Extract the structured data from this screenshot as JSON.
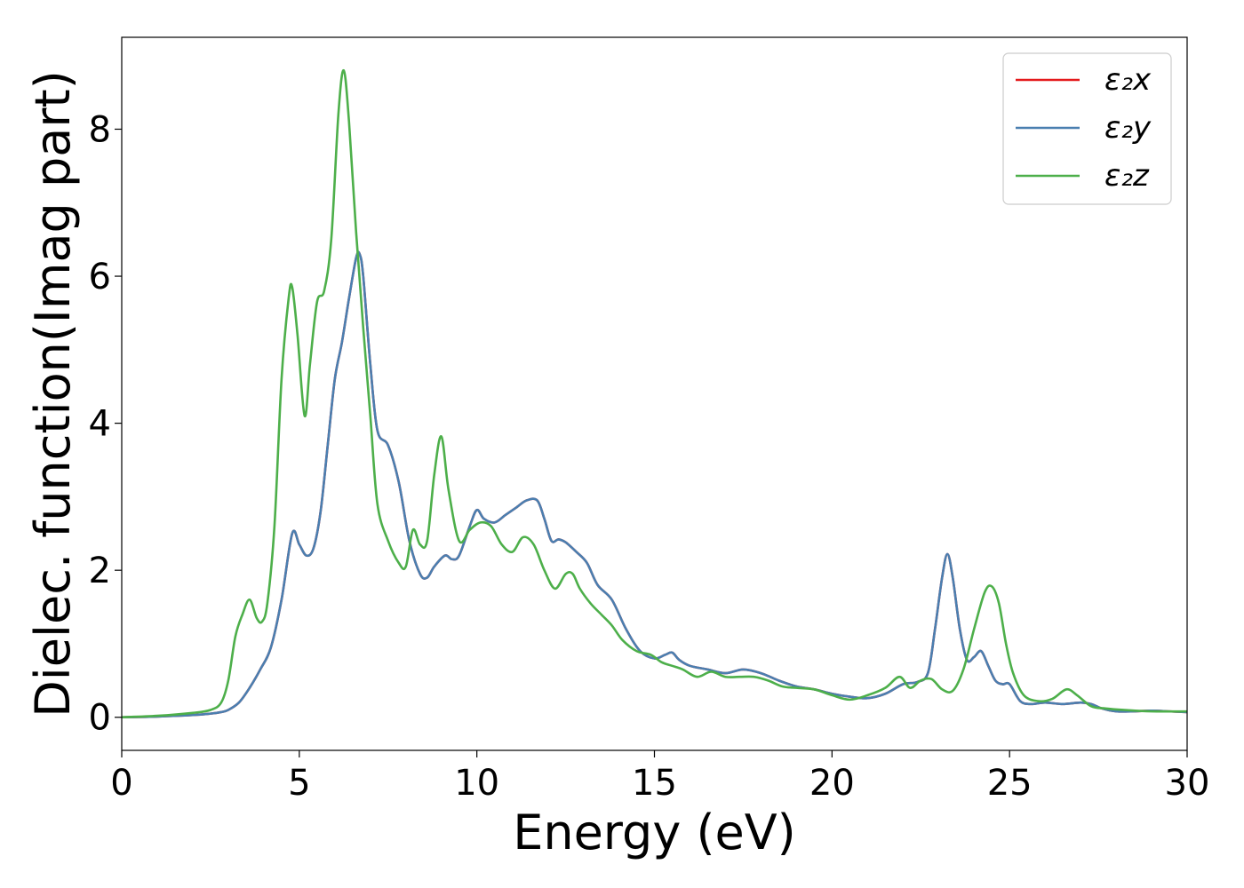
{
  "chart_data": {
    "type": "line",
    "title": "",
    "xlabel": "Energy (eV)",
    "ylabel": "Dielec. function(Imag part)",
    "xlim": [
      0,
      30
    ],
    "ylim": [
      -0.45,
      9.25
    ],
    "xticks": [
      0,
      5,
      10,
      15,
      20,
      25,
      30
    ],
    "xtick_labels": [
      "0",
      "5",
      "10",
      "15",
      "20",
      "25",
      "30"
    ],
    "yticks": [
      0,
      2,
      4,
      6,
      8
    ],
    "ytick_labels": [
      "0",
      "2",
      "4",
      "6",
      "8"
    ],
    "grid": false,
    "legend_position": "top-right",
    "series": [
      {
        "name": "ε₂x",
        "color": "#e41a1c",
        "x": [
          0,
          1,
          2,
          2.5,
          2.8,
          3,
          3.3,
          3.6,
          3.9,
          4.2,
          4.5,
          4.8,
          5.0,
          5.2,
          5.4,
          5.6,
          5.8,
          6.0,
          6.2,
          6.4,
          6.6,
          6.7,
          6.8,
          7.0,
          7.2,
          7.5,
          7.8,
          8.1,
          8.4,
          8.6,
          8.8,
          9.1,
          9.3,
          9.5,
          9.8,
          10.0,
          10.2,
          10.5,
          10.8,
          11.1,
          11.4,
          11.7,
          11.9,
          12.1,
          12.3,
          12.5,
          12.8,
          13.1,
          13.4,
          13.8,
          14.2,
          14.6,
          15.0,
          15.3,
          15.5,
          15.7,
          16.0,
          16.5,
          17.0,
          17.5,
          18.0,
          18.5,
          19.0,
          19.5,
          20.0,
          20.5,
          21.0,
          21.5,
          22.0,
          22.4,
          22.7,
          22.9,
          23.1,
          23.25,
          23.4,
          23.6,
          23.8,
          24.0,
          24.2,
          24.4,
          24.6,
          24.8,
          25.0,
          25.3,
          25.6,
          26.0,
          26.5,
          27.0,
          27.3,
          27.6,
          28.0,
          28.5,
          29.0,
          29.5,
          30.0
        ],
        "values": [
          0,
          0.01,
          0.03,
          0.05,
          0.07,
          0.1,
          0.2,
          0.4,
          0.65,
          0.95,
          1.6,
          2.5,
          2.35,
          2.2,
          2.3,
          2.8,
          3.7,
          4.6,
          5.1,
          5.7,
          6.25,
          6.3,
          6.0,
          4.8,
          3.9,
          3.7,
          3.2,
          2.4,
          1.95,
          1.9,
          2.05,
          2.2,
          2.15,
          2.2,
          2.6,
          2.82,
          2.7,
          2.65,
          2.75,
          2.85,
          2.95,
          2.95,
          2.7,
          2.4,
          2.42,
          2.38,
          2.25,
          2.1,
          1.8,
          1.6,
          1.2,
          0.9,
          0.8,
          0.85,
          0.88,
          0.78,
          0.7,
          0.65,
          0.6,
          0.65,
          0.6,
          0.5,
          0.42,
          0.38,
          0.32,
          0.28,
          0.26,
          0.32,
          0.45,
          0.48,
          0.6,
          1.2,
          1.9,
          2.22,
          1.9,
          1.2,
          0.78,
          0.82,
          0.9,
          0.7,
          0.5,
          0.45,
          0.45,
          0.22,
          0.18,
          0.2,
          0.18,
          0.2,
          0.18,
          0.12,
          0.08,
          0.08,
          0.09,
          0.08,
          0.07
        ]
      },
      {
        "name": "ε₂y",
        "color": "#4a7fb0",
        "x": [
          0,
          1,
          2,
          2.5,
          2.8,
          3,
          3.3,
          3.6,
          3.9,
          4.2,
          4.5,
          4.8,
          5.0,
          5.2,
          5.4,
          5.6,
          5.8,
          6.0,
          6.2,
          6.4,
          6.6,
          6.7,
          6.8,
          7.0,
          7.2,
          7.5,
          7.8,
          8.1,
          8.4,
          8.6,
          8.8,
          9.1,
          9.3,
          9.5,
          9.8,
          10.0,
          10.2,
          10.5,
          10.8,
          11.1,
          11.4,
          11.7,
          11.9,
          12.1,
          12.3,
          12.5,
          12.8,
          13.1,
          13.4,
          13.8,
          14.2,
          14.6,
          15.0,
          15.3,
          15.5,
          15.7,
          16.0,
          16.5,
          17.0,
          17.5,
          18.0,
          18.5,
          19.0,
          19.5,
          20.0,
          20.5,
          21.0,
          21.5,
          22.0,
          22.4,
          22.7,
          22.9,
          23.1,
          23.25,
          23.4,
          23.6,
          23.8,
          24.0,
          24.2,
          24.4,
          24.6,
          24.8,
          25.0,
          25.3,
          25.6,
          26.0,
          26.5,
          27.0,
          27.3,
          27.6,
          28.0,
          28.5,
          29.0,
          29.5,
          30.0
        ],
        "values": [
          0,
          0.01,
          0.03,
          0.05,
          0.07,
          0.1,
          0.2,
          0.4,
          0.65,
          0.95,
          1.6,
          2.5,
          2.35,
          2.2,
          2.3,
          2.8,
          3.7,
          4.6,
          5.1,
          5.7,
          6.25,
          6.3,
          6.0,
          4.8,
          3.9,
          3.7,
          3.2,
          2.4,
          1.95,
          1.9,
          2.05,
          2.2,
          2.15,
          2.2,
          2.6,
          2.82,
          2.7,
          2.65,
          2.75,
          2.85,
          2.95,
          2.95,
          2.7,
          2.4,
          2.42,
          2.38,
          2.25,
          2.1,
          1.8,
          1.6,
          1.2,
          0.9,
          0.8,
          0.85,
          0.88,
          0.78,
          0.7,
          0.65,
          0.6,
          0.65,
          0.6,
          0.5,
          0.42,
          0.38,
          0.32,
          0.28,
          0.26,
          0.32,
          0.45,
          0.48,
          0.6,
          1.2,
          1.9,
          2.22,
          1.9,
          1.2,
          0.78,
          0.82,
          0.9,
          0.7,
          0.5,
          0.45,
          0.45,
          0.22,
          0.18,
          0.2,
          0.18,
          0.2,
          0.18,
          0.12,
          0.08,
          0.08,
          0.09,
          0.08,
          0.07
        ]
      },
      {
        "name": "ε₂z",
        "color": "#4daf4a",
        "x": [
          0,
          1,
          2,
          2.5,
          2.8,
          3.0,
          3.2,
          3.4,
          3.6,
          3.8,
          3.95,
          4.1,
          4.3,
          4.5,
          4.7,
          4.8,
          4.95,
          5.15,
          5.3,
          5.5,
          5.7,
          5.9,
          6.1,
          6.25,
          6.4,
          6.6,
          6.8,
          7.0,
          7.2,
          7.5,
          7.8,
          8.0,
          8.2,
          8.4,
          8.6,
          8.8,
          9.0,
          9.2,
          9.5,
          9.8,
          10.1,
          10.4,
          10.7,
          11.0,
          11.3,
          11.6,
          11.9,
          12.2,
          12.5,
          12.7,
          12.9,
          13.2,
          13.5,
          13.8,
          14.1,
          14.5,
          14.9,
          15.2,
          15.5,
          15.8,
          16.2,
          16.6,
          17.0,
          17.4,
          17.8,
          18.2,
          18.6,
          19.0,
          19.5,
          20.0,
          20.5,
          21.0,
          21.5,
          21.9,
          22.2,
          22.5,
          22.8,
          23.1,
          23.4,
          23.7,
          24.0,
          24.3,
          24.5,
          24.7,
          24.9,
          25.1,
          25.4,
          25.8,
          26.2,
          26.6,
          26.9,
          27.3,
          27.7,
          28.2,
          29.0,
          30.0
        ],
        "values": [
          0,
          0.02,
          0.06,
          0.1,
          0.2,
          0.5,
          1.1,
          1.4,
          1.6,
          1.35,
          1.3,
          1.55,
          2.6,
          4.6,
          5.7,
          5.85,
          5.2,
          4.1,
          4.8,
          5.65,
          5.8,
          6.5,
          8.2,
          8.8,
          8.1,
          6.6,
          5.3,
          4.1,
          2.9,
          2.4,
          2.1,
          2.05,
          2.55,
          2.35,
          2.4,
          3.3,
          3.82,
          3.1,
          2.4,
          2.55,
          2.65,
          2.6,
          2.35,
          2.25,
          2.45,
          2.35,
          2.0,
          1.75,
          1.95,
          1.95,
          1.75,
          1.55,
          1.4,
          1.25,
          1.05,
          0.9,
          0.85,
          0.75,
          0.7,
          0.65,
          0.55,
          0.62,
          0.55,
          0.55,
          0.55,
          0.5,
          0.42,
          0.4,
          0.38,
          0.3,
          0.24,
          0.3,
          0.4,
          0.55,
          0.4,
          0.5,
          0.52,
          0.38,
          0.36,
          0.65,
          1.2,
          1.7,
          1.78,
          1.55,
          1.0,
          0.6,
          0.3,
          0.22,
          0.25,
          0.38,
          0.3,
          0.15,
          0.12,
          0.1,
          0.08,
          0.08
        ]
      }
    ]
  }
}
